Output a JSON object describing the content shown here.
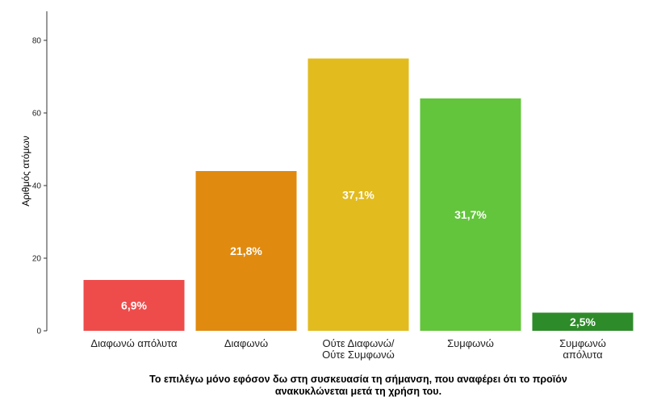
{
  "chart_data": {
    "type": "bar",
    "categories": [
      [
        "Διαφωνώ απόλυτα"
      ],
      [
        "Διαφωνώ"
      ],
      [
        "Ούτε Διαφωνώ/",
        "Ούτε Συμφωνώ"
      ],
      [
        "Συμφωνώ"
      ],
      [
        "Συμφωνώ",
        "απόλυτα"
      ]
    ],
    "values": [
      14,
      44,
      75,
      64,
      5
    ],
    "data_labels": [
      "6,9%",
      "21,8%",
      "37,1%",
      "31,7%",
      "2,5%"
    ],
    "colors": [
      "#ee4b4b",
      "#e08a0f",
      "#e2bb1f",
      "#62c53b",
      "#2e8b2a"
    ],
    "ylabel": "Αριθμός ατόμων",
    "xlabel_lines": [
      "Το επιλέγω μόνο εφόσον δω στη συσκευασία τη σήμανση, που αναφέρει ότι το προϊόν",
      "ανακυκλώνεται μετά τη χρήση του."
    ],
    "ylim": [
      0,
      88
    ],
    "yticks": [
      0,
      20,
      40,
      60,
      80
    ],
    "grid": false
  }
}
